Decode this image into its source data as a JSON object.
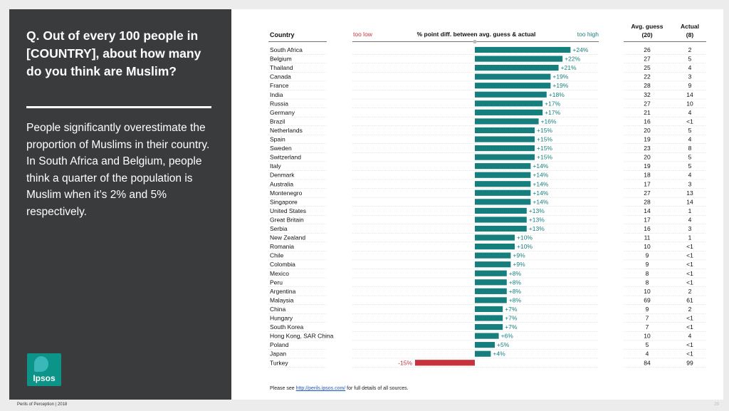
{
  "question": "Q. Out of every 100 people in [COUNTRY], about how many do you think are Muslim?",
  "summary": "People significantly overestimate the proportion of Muslims in their country. In South Africa and Belgium, people think a quarter of the population is Muslim when it’s 2% and 5% respectively.",
  "logo_text": "Ipsos",
  "footer": "Perils of Perception | 2018",
  "page_number": "29",
  "source": {
    "prefix": "Please see ",
    "link": "http://perils.ipsos.com/",
    "suffix": " for full details of all sources."
  },
  "colors": {
    "positive": "#167f7e",
    "negative": "#c8323d",
    "panel": "#3a3b3d"
  },
  "chart_data": {
    "type": "bar",
    "orientation": "horizontal",
    "headers": {
      "country": "Country",
      "too_low": "too low",
      "diff": "% point diff. between avg. guess & actual",
      "too_high": "too high",
      "avg_guess": "Avg. guess",
      "avg_guess_n": "(20)",
      "actual": "Actual",
      "actual_n": "(8)"
    },
    "xlim": [
      -27,
      27
    ],
    "rows": [
      {
        "country": "South Africa",
        "diff": 24,
        "label": "+24%",
        "guess": "26",
        "actual": "2"
      },
      {
        "country": "Belgium",
        "diff": 22,
        "label": "+22%",
        "guess": "27",
        "actual": "5"
      },
      {
        "country": "Thailand",
        "diff": 21,
        "label": "+21%",
        "guess": "25",
        "actual": "4"
      },
      {
        "country": "Canada",
        "diff": 19,
        "label": "+19%",
        "guess": "22",
        "actual": "3"
      },
      {
        "country": "France",
        "diff": 19,
        "label": "+19%",
        "guess": "28",
        "actual": "9"
      },
      {
        "country": "India",
        "diff": 18,
        "label": "+18%",
        "guess": "32",
        "actual": "14"
      },
      {
        "country": "Russia",
        "diff": 17,
        "label": "+17%",
        "guess": "27",
        "actual": "10"
      },
      {
        "country": "Germany",
        "diff": 17,
        "label": "+17%",
        "guess": "21",
        "actual": "4"
      },
      {
        "country": "Brazil",
        "diff": 16,
        "label": "+16%",
        "guess": "16",
        "actual": "<1"
      },
      {
        "country": "Netherlands",
        "diff": 15,
        "label": "+15%",
        "guess": "20",
        "actual": "5"
      },
      {
        "country": "Spain",
        "diff": 15,
        "label": "+15%",
        "guess": "19",
        "actual": "4"
      },
      {
        "country": "Sweden",
        "diff": 15,
        "label": "+15%",
        "guess": "23",
        "actual": "8"
      },
      {
        "country": "Switzerland",
        "diff": 15,
        "label": "+15%",
        "guess": "20",
        "actual": "5"
      },
      {
        "country": "Italy",
        "diff": 14,
        "label": "+14%",
        "guess": "19",
        "actual": "5"
      },
      {
        "country": "Denmark",
        "diff": 14,
        "label": "+14%",
        "guess": "18",
        "actual": "4"
      },
      {
        "country": "Australia",
        "diff": 14,
        "label": "+14%",
        "guess": "17",
        "actual": "3"
      },
      {
        "country": "Montenegro",
        "diff": 14,
        "label": "+14%",
        "guess": "27",
        "actual": "13"
      },
      {
        "country": "Singapore",
        "diff": 14,
        "label": "+14%",
        "guess": "28",
        "actual": "14"
      },
      {
        "country": "United States",
        "diff": 13,
        "label": "+13%",
        "guess": "14",
        "actual": "1"
      },
      {
        "country": "Great Britain",
        "diff": 13,
        "label": "+13%",
        "guess": "17",
        "actual": "4"
      },
      {
        "country": "Serbia",
        "diff": 13,
        "label": "+13%",
        "guess": "16",
        "actual": "3"
      },
      {
        "country": "New Zealand",
        "diff": 10,
        "label": "+10%",
        "guess": "11",
        "actual": "1"
      },
      {
        "country": "Romania",
        "diff": 10,
        "label": "+10%",
        "guess": "10",
        "actual": "<1"
      },
      {
        "country": "Chile",
        "diff": 9,
        "label": "+9%",
        "guess": "9",
        "actual": "<1"
      },
      {
        "country": "Colombia",
        "diff": 9,
        "label": "+9%",
        "guess": "9",
        "actual": "<1"
      },
      {
        "country": "Mexico",
        "diff": 8,
        "label": "+8%",
        "guess": "8",
        "actual": "<1"
      },
      {
        "country": "Peru",
        "diff": 8,
        "label": "+8%",
        "guess": "8",
        "actual": "<1"
      },
      {
        "country": "Argentina",
        "diff": 8,
        "label": "+8%",
        "guess": "10",
        "actual": "2"
      },
      {
        "country": "Malaysia",
        "diff": 8,
        "label": "+8%",
        "guess": "69",
        "actual": "61"
      },
      {
        "country": "China",
        "diff": 7,
        "label": "+7%",
        "guess": "9",
        "actual": "2"
      },
      {
        "country": "Hungary",
        "diff": 7,
        "label": "+7%",
        "guess": "7",
        "actual": "<1"
      },
      {
        "country": "South Korea",
        "diff": 7,
        "label": "+7%",
        "guess": "7",
        "actual": "<1"
      },
      {
        "country": "Hong Kong, SAR China",
        "diff": 6,
        "label": "+6%",
        "guess": "10",
        "actual": "4"
      },
      {
        "country": "Poland",
        "diff": 5,
        "label": "+5%",
        "guess": "5",
        "actual": "<1"
      },
      {
        "country": "Japan",
        "diff": 4,
        "label": "+4%",
        "guess": "4",
        "actual": "<1"
      },
      {
        "country": "Turkey",
        "diff": -15,
        "label": "-15%",
        "guess": "84",
        "actual": "99"
      }
    ]
  }
}
